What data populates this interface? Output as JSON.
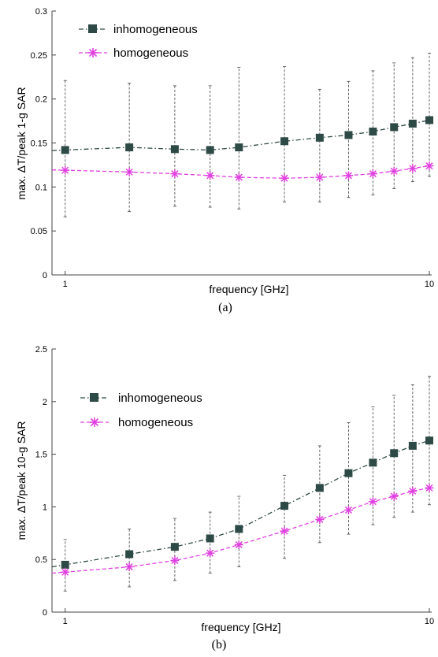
{
  "chart_data": [
    {
      "type": "line",
      "xscale": "log",
      "xlim": [
        0.92,
        10.15
      ],
      "ylim": [
        0,
        0.3
      ],
      "xticks": [
        1,
        10
      ],
      "xtick_labels": [
        "1",
        "10"
      ],
      "yticks": [
        0,
        0.05,
        0.1,
        0.15,
        0.2,
        0.25,
        0.3
      ],
      "ytick_labels": [
        "0",
        "0.05",
        "0.1",
        "0.15",
        "0.2",
        "0.25",
        "0.3"
      ],
      "xlabel": "frequency [GHz]",
      "ylabel": "max. ΔT/peak 1-g SAR",
      "caption": "(a)",
      "legend_position": "top-left",
      "series": [
        {
          "name": "inhomogeneous",
          "color": "#2e4a46",
          "marker": "square",
          "line_style": "dash-dot",
          "x": [
            1,
            1.5,
            2,
            2.5,
            3,
            4,
            5,
            6,
            7,
            8,
            9,
            10
          ],
          "y": [
            0.142,
            0.145,
            0.143,
            0.142,
            0.145,
            0.152,
            0.156,
            0.159,
            0.163,
            0.168,
            0.172,
            0.176
          ],
          "err_low": [
            0.066,
            0.072,
            0.078,
            0.077,
            0.075,
            0.083,
            0.083,
            0.088,
            0.091,
            0.098,
            0.106,
            0.112
          ],
          "err_high": [
            0.221,
            0.218,
            0.215,
            0.215,
            0.236,
            0.237,
            0.211,
            0.22,
            0.232,
            0.241,
            0.247,
            0.252
          ]
        },
        {
          "name": "homogeneous",
          "color": "#e040e0",
          "marker": "asterisk",
          "line_style": "dashed",
          "x": [
            1,
            1.5,
            2,
            2.5,
            3,
            4,
            5,
            6,
            7,
            8,
            9,
            10
          ],
          "y": [
            0.119,
            0.117,
            0.115,
            0.113,
            0.111,
            0.11,
            0.111,
            0.113,
            0.115,
            0.118,
            0.121,
            0.124
          ]
        }
      ]
    },
    {
      "type": "line",
      "xscale": "log",
      "xlim": [
        0.92,
        10.15
      ],
      "ylim": [
        0,
        2.5
      ],
      "xticks": [
        1,
        10
      ],
      "xtick_labels": [
        "1",
        "10"
      ],
      "yticks": [
        0,
        0.5,
        1,
        1.5,
        2,
        2.5
      ],
      "ytick_labels": [
        "0",
        "0.5",
        "1",
        "1.5",
        "2",
        "2.5"
      ],
      "xlabel": "frequency [GHz]",
      "ylabel": "max. ΔT/peak 10-g SAR",
      "caption": "(b)",
      "legend_position": "upper-left",
      "series": [
        {
          "name": "inhomogeneous",
          "color": "#2e4a46",
          "marker": "square",
          "line_style": "dash-dot",
          "x": [
            1,
            1.5,
            2,
            2.5,
            3,
            4,
            5,
            6,
            7,
            8,
            9,
            10
          ],
          "y": [
            0.45,
            0.55,
            0.62,
            0.7,
            0.79,
            1.01,
            1.18,
            1.32,
            1.42,
            1.51,
            1.58,
            1.63
          ],
          "err_low": [
            0.2,
            0.24,
            0.3,
            0.37,
            0.43,
            0.51,
            0.66,
            0.74,
            0.83,
            0.9,
            0.95,
            1.02
          ],
          "err_high": [
            0.69,
            0.79,
            0.89,
            0.95,
            1.1,
            1.3,
            1.58,
            1.8,
            1.95,
            2.06,
            2.16,
            2.24
          ]
        },
        {
          "name": "homogeneous",
          "color": "#e040e0",
          "marker": "asterisk",
          "line_style": "dashed",
          "x": [
            1,
            1.5,
            2,
            2.5,
            3,
            4,
            5,
            6,
            7,
            8,
            9,
            10
          ],
          "y": [
            0.38,
            0.43,
            0.49,
            0.56,
            0.64,
            0.77,
            0.88,
            0.97,
            1.05,
            1.1,
            1.15,
            1.18
          ]
        }
      ]
    }
  ]
}
